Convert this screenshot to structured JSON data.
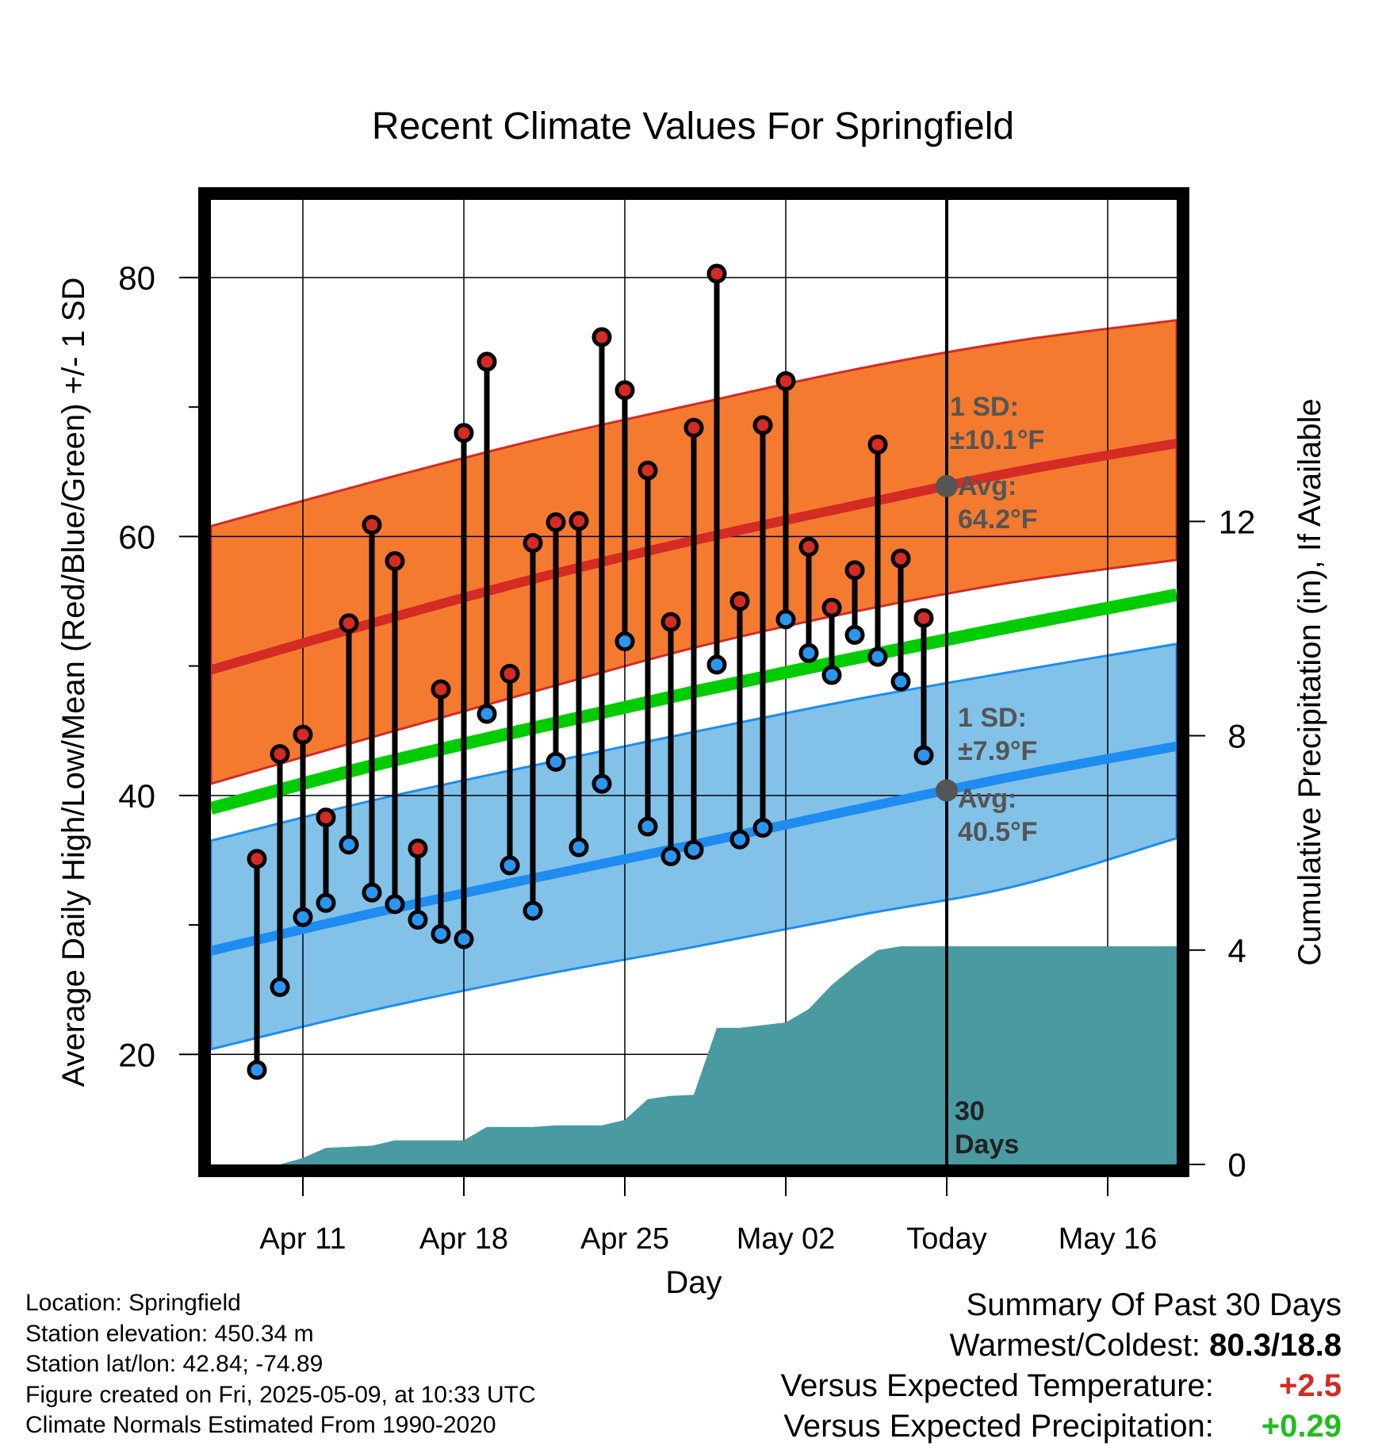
{
  "chart_data": {
    "type": "line",
    "title": "Recent Climate Values For Springfield",
    "xlabel": "Day",
    "ylabel": "Average Daily High/Low/Mean (Red/Blue/Green) +/- 1 SD",
    "y2label": "Cumulative Precipitation (in), If Available",
    "x_range": [
      "2025-04-07",
      "2025-05-19"
    ],
    "ylim": [
      11.5,
      86
    ],
    "y2lim": [
      0,
      18
    ],
    "yticks": [
      20,
      40,
      60,
      80
    ],
    "y2ticks": [
      0,
      4,
      8,
      12
    ],
    "xticks": [
      {
        "date": "2025-04-11",
        "label": "Apr 11"
      },
      {
        "date": "2025-04-18",
        "label": "Apr 18"
      },
      {
        "date": "2025-04-25",
        "label": "Apr 25"
      },
      {
        "date": "2025-05-02",
        "label": "May 02"
      },
      {
        "date": "2025-05-09",
        "label": "Today"
      },
      {
        "date": "2025-05-16",
        "label": "May 16"
      }
    ],
    "grid": true,
    "today": "2025-05-09",
    "today_label": [
      "30",
      "Days"
    ],
    "daily": [
      {
        "date": "2025-04-09",
        "high": 35.1,
        "low": 18.8
      },
      {
        "date": "2025-04-10",
        "high": 43.2,
        "low": 25.2
      },
      {
        "date": "2025-04-11",
        "high": 44.7,
        "low": 30.6
      },
      {
        "date": "2025-04-12",
        "high": 38.3,
        "low": 31.7
      },
      {
        "date": "2025-04-13",
        "high": 53.3,
        "low": 36.2
      },
      {
        "date": "2025-04-14",
        "high": 60.9,
        "low": 32.5
      },
      {
        "date": "2025-04-15",
        "high": 58.1,
        "low": 31.6
      },
      {
        "date": "2025-04-16",
        "high": 35.9,
        "low": 30.4
      },
      {
        "date": "2025-04-17",
        "high": 48.2,
        "low": 29.3
      },
      {
        "date": "2025-04-18",
        "high": 68.0,
        "low": 28.9
      },
      {
        "date": "2025-04-19",
        "high": 73.5,
        "low": 46.3
      },
      {
        "date": "2025-04-20",
        "high": 49.4,
        "low": 34.6
      },
      {
        "date": "2025-04-21",
        "high": 59.5,
        "low": 31.1
      },
      {
        "date": "2025-04-22",
        "high": 61.1,
        "low": 42.6
      },
      {
        "date": "2025-04-23",
        "high": 61.2,
        "low": 36.0
      },
      {
        "date": "2025-04-24",
        "high": 75.4,
        "low": 40.9
      },
      {
        "date": "2025-04-25",
        "high": 71.3,
        "low": 51.9
      },
      {
        "date": "2025-04-26",
        "high": 65.1,
        "low": 37.6
      },
      {
        "date": "2025-04-27",
        "high": 53.4,
        "low": 35.3
      },
      {
        "date": "2025-04-28",
        "high": 68.4,
        "low": 35.8
      },
      {
        "date": "2025-04-29",
        "high": 80.3,
        "low": 50.1
      },
      {
        "date": "2025-04-30",
        "high": 55.0,
        "low": 36.6
      },
      {
        "date": "2025-05-01",
        "high": 68.6,
        "low": 37.5
      },
      {
        "date": "2025-05-02",
        "high": 72.0,
        "low": 53.6
      },
      {
        "date": "2025-05-03",
        "high": 59.2,
        "low": 51.0
      },
      {
        "date": "2025-05-04",
        "high": 54.5,
        "low": 49.3
      },
      {
        "date": "2025-05-05",
        "high": 57.4,
        "low": 52.4
      },
      {
        "date": "2025-05-06",
        "high": 67.1,
        "low": 50.7
      },
      {
        "date": "2025-05-07",
        "high": 58.3,
        "low": 48.8
      },
      {
        "date": "2025-05-08",
        "high": 53.7,
        "low": 43.1
      }
    ],
    "normal_high": {
      "x": [
        "2025-04-07",
        "2025-04-14",
        "2025-04-21",
        "2025-04-28",
        "2025-05-05",
        "2025-05-12",
        "2025-05-19"
      ],
      "mean": [
        49.7,
        53.3,
        56.7,
        59.7,
        62.4,
        65.0,
        67.2
      ],
      "upper": [
        60.8,
        64.2,
        67.4,
        70.2,
        72.9,
        75.1,
        76.7
      ],
      "lower": [
        40.9,
        44.5,
        48.0,
        51.4,
        54.2,
        56.5,
        58.2
      ]
    },
    "normal_low": {
      "x": [
        "2025-04-07",
        "2025-04-14",
        "2025-04-21",
        "2025-04-28",
        "2025-05-05",
        "2025-05-12",
        "2025-05-19"
      ],
      "mean": [
        28.0,
        30.9,
        33.6,
        36.2,
        38.9,
        41.5,
        43.8
      ],
      "upper": [
        36.5,
        39.6,
        42.3,
        44.9,
        47.4,
        49.6,
        51.7
      ],
      "lower": [
        20.4,
        23.4,
        26.0,
        28.3,
        30.7,
        33.0,
        36.7
      ]
    },
    "normal_mean": {
      "x": [
        "2025-04-07",
        "2025-04-14",
        "2025-04-21",
        "2025-04-28",
        "2025-05-05",
        "2025-05-12",
        "2025-05-19"
      ],
      "values": [
        39.0,
        42.3,
        45.2,
        48.0,
        50.6,
        53.1,
        55.5
      ]
    },
    "precipitation": {
      "x": [
        "2025-04-07",
        "2025-04-10",
        "2025-04-11",
        "2025-04-12",
        "2025-04-14",
        "2025-04-15",
        "2025-04-18",
        "2025-04-19",
        "2025-04-21",
        "2025-04-22",
        "2025-04-24",
        "2025-04-25",
        "2025-04-26",
        "2025-04-27",
        "2025-04-28",
        "2025-04-29",
        "2025-04-30",
        "2025-05-02",
        "2025-05-03",
        "2025-05-04",
        "2025-05-05",
        "2025-05-06",
        "2025-05-07",
        "2025-05-08",
        "2025-05-09",
        "2025-05-19"
      ],
      "values": [
        0.0,
        0.0,
        0.12,
        0.31,
        0.35,
        0.45,
        0.45,
        0.7,
        0.7,
        0.73,
        0.73,
        0.83,
        1.22,
        1.28,
        1.3,
        2.55,
        2.55,
        2.65,
        2.9,
        3.35,
        3.7,
        4.0,
        4.07,
        4.07,
        4.07,
        4.07
      ]
    },
    "annotations": {
      "high_sd": "1 SD:",
      "high_sd_value": "±10.1°F",
      "high_avg": "Avg:",
      "high_avg_value": "64.2°F",
      "low_sd": "1 SD:",
      "low_sd_value": "±7.9°F",
      "low_avg": "Avg:",
      "low_avg_value": "40.5°F"
    },
    "colors": {
      "high_band": "#f47a30",
      "high_line": "#d42b25",
      "low_band": "#82c2e8",
      "low_line": "#1e8cf0",
      "mean_line": "#00cc00",
      "precip": "#4a9aa2",
      "high_point": "#d42b25",
      "low_point": "#2b96f0",
      "annotation": "#555555"
    }
  },
  "info": {
    "location": "Location: Springfield",
    "elevation": "Station elevation: 450.34 m",
    "latlon": "Station lat/lon: 42.84; -74.89",
    "created": "Figure created on Fri, 2025-05-09, at 10:33 UTC",
    "normals": "Climate Normals Estimated From 1990-2020"
  },
  "summary": {
    "title": "Summary Of Past 30 Days",
    "warm_cold_label": "Warmest/Coldest:",
    "warm_cold_value": "80.3/18.8",
    "temp_label": "Versus Expected Temperature:",
    "temp_value": "+2.5",
    "precip_label": "Versus Expected Precipitation:",
    "precip_value": "+0.29",
    "temp_color": "#d42b25",
    "precip_color": "#22bb22"
  }
}
